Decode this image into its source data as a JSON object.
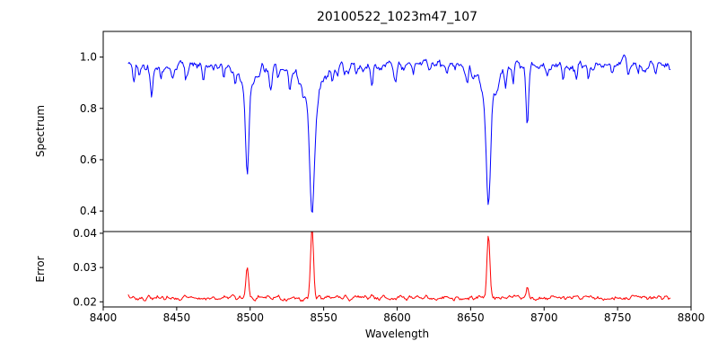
{
  "chart_data": {
    "type": "line",
    "title": "20100522_1023m47_107",
    "xlabel": "Wavelength",
    "x_range": [
      8400,
      8800
    ],
    "x_data_range": [
      8417,
      8786
    ],
    "x_ticks": [
      8400,
      8450,
      8500,
      8550,
      8600,
      8650,
      8700,
      8750,
      8800
    ],
    "n_points": 560,
    "seed": 42,
    "grid": false,
    "legend": "none",
    "panels": [
      {
        "name": "spectrum",
        "ylabel": "Spectrum",
        "color": "#0000ff",
        "ylim": [
          0.32,
          1.1
        ],
        "yticks": [
          0.4,
          0.6,
          0.8,
          1.0
        ],
        "tick_decimals": 1,
        "continuum": 0.965,
        "noise_amp": 0.012,
        "fine_noise": 0.016,
        "absorption_lines": [
          {
            "center": 8498.0,
            "depth": 0.36,
            "sigma": 1.1,
            "wing_depth": 0.08,
            "wing_sigma": 5
          },
          {
            "center": 8542.1,
            "depth": 0.46,
            "sigma": 1.5,
            "wing_depth": 0.14,
            "wing_sigma": 7
          },
          {
            "center": 8662.1,
            "depth": 0.42,
            "sigma": 1.4,
            "wing_depth": 0.12,
            "wing_sigma": 6
          },
          {
            "center": 8688.6,
            "depth": 0.22,
            "sigma": 0.9
          },
          {
            "center": 8421.0,
            "depth": 0.06,
            "sigma": 0.7
          },
          {
            "center": 8424.5,
            "depth": 0.05,
            "sigma": 0.6
          },
          {
            "center": 8433.0,
            "depth": 0.09,
            "sigma": 0.8
          },
          {
            "center": 8439.0,
            "depth": 0.05,
            "sigma": 0.6
          },
          {
            "center": 8447.0,
            "depth": 0.06,
            "sigma": 0.7
          },
          {
            "center": 8456.0,
            "depth": 0.04,
            "sigma": 0.6
          },
          {
            "center": 8468.0,
            "depth": 0.07,
            "sigma": 0.7
          },
          {
            "center": 8475.0,
            "depth": 0.05,
            "sigma": 0.6
          },
          {
            "center": 8482.0,
            "depth": 0.05,
            "sigma": 0.6
          },
          {
            "center": 8490.0,
            "depth": 0.04,
            "sigma": 0.6
          },
          {
            "center": 8514.0,
            "depth": 0.1,
            "sigma": 0.9
          },
          {
            "center": 8519.0,
            "depth": 0.05,
            "sigma": 0.6
          },
          {
            "center": 8527.0,
            "depth": 0.06,
            "sigma": 0.7
          },
          {
            "center": 8536.0,
            "depth": 0.04,
            "sigma": 0.6
          },
          {
            "center": 8556.0,
            "depth": 0.05,
            "sigma": 0.6
          },
          {
            "center": 8564.0,
            "depth": 0.04,
            "sigma": 0.6
          },
          {
            "center": 8572.0,
            "depth": 0.04,
            "sigma": 0.6
          },
          {
            "center": 8583.0,
            "depth": 0.05,
            "sigma": 0.7
          },
          {
            "center": 8599.0,
            "depth": 0.04,
            "sigma": 0.6
          },
          {
            "center": 8611.0,
            "depth": 0.05,
            "sigma": 0.7
          },
          {
            "center": 8622.0,
            "depth": 0.04,
            "sigma": 0.6
          },
          {
            "center": 8634.0,
            "depth": 0.04,
            "sigma": 0.6
          },
          {
            "center": 8648.0,
            "depth": 0.05,
            "sigma": 0.7
          },
          {
            "center": 8674.0,
            "depth": 0.06,
            "sigma": 0.7
          },
          {
            "center": 8679.0,
            "depth": 0.05,
            "sigma": 0.6
          },
          {
            "center": 8702.0,
            "depth": 0.04,
            "sigma": 0.6
          },
          {
            "center": 8713.0,
            "depth": 0.05,
            "sigma": 0.7
          },
          {
            "center": 8722.0,
            "depth": 0.04,
            "sigma": 0.6
          },
          {
            "center": 8730.0,
            "depth": 0.04,
            "sigma": 0.6
          },
          {
            "center": 8746.0,
            "depth": 0.04,
            "sigma": 0.6
          },
          {
            "center": 8757.0,
            "depth": 0.05,
            "sigma": 0.7
          },
          {
            "center": 8764.0,
            "depth": 0.04,
            "sigma": 0.6
          },
          {
            "center": 8776.0,
            "depth": 0.04,
            "sigma": 0.6
          }
        ]
      },
      {
        "name": "error",
        "ylabel": "Error",
        "color": "#ff0000",
        "ylim": [
          0.0185,
          0.0405
        ],
        "yticks": [
          0.02,
          0.03,
          0.04
        ],
        "tick_decimals": 2,
        "baseline": 0.0212,
        "noise_amp": 0.0004,
        "fine_noise": 0.001,
        "spikes": [
          {
            "center": 8498.0,
            "height": 0.0085,
            "sigma": 0.9
          },
          {
            "center": 8542.1,
            "height": 0.0205,
            "sigma": 1.0
          },
          {
            "center": 8662.1,
            "height": 0.0178,
            "sigma": 1.0
          },
          {
            "center": 8688.6,
            "height": 0.003,
            "sigma": 0.7
          }
        ]
      }
    ]
  }
}
